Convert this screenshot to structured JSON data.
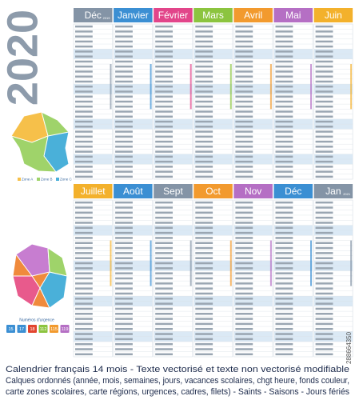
{
  "year": "2020",
  "months_top": [
    {
      "name": "Déc",
      "year": "2019",
      "color": "#8494a6"
    },
    {
      "name": "Janvier",
      "color": "#3b8fd3"
    },
    {
      "name": "Février",
      "color": "#e2458a"
    },
    {
      "name": "Mars",
      "color": "#8cc43f"
    },
    {
      "name": "Avril",
      "color": "#f29a2e"
    },
    {
      "name": "Mai",
      "color": "#b56fc4"
    },
    {
      "name": "Juin",
      "color": "#f3b12c"
    }
  ],
  "months_bottom": [
    {
      "name": "Juillet",
      "color": "#f3b12c"
    },
    {
      "name": "Août",
      "color": "#3b8fd3"
    },
    {
      "name": "Sept",
      "color": "#8494a6"
    },
    {
      "name": "Oct",
      "color": "#f29a2e"
    },
    {
      "name": "Nov",
      "color": "#b56fc4"
    },
    {
      "name": "Déc",
      "color": "#3b8fd3"
    },
    {
      "name": "Jan",
      "year": "2021",
      "color": "#8494a6"
    }
  ],
  "zones": [
    "Zone A",
    "Zone B",
    "Zone C"
  ],
  "emergency": {
    "title": "Numéros d'urgence",
    "numbers": [
      "15",
      "17",
      "18",
      "112",
      "115",
      "119"
    ]
  },
  "footer": [
    "Calendrier français 14 mois - Texte vectorisé et texte non vectorisé modifiable",
    "Calques ordonnés (année, mois, semaines, jours, vacances scolaires, chgt heure, fonds couleur,",
    "carte zones scolaires, carte régions, urgences, cadres, filets) - Saints - Saisons - Jours fériés"
  ],
  "stock_id": "288664350"
}
